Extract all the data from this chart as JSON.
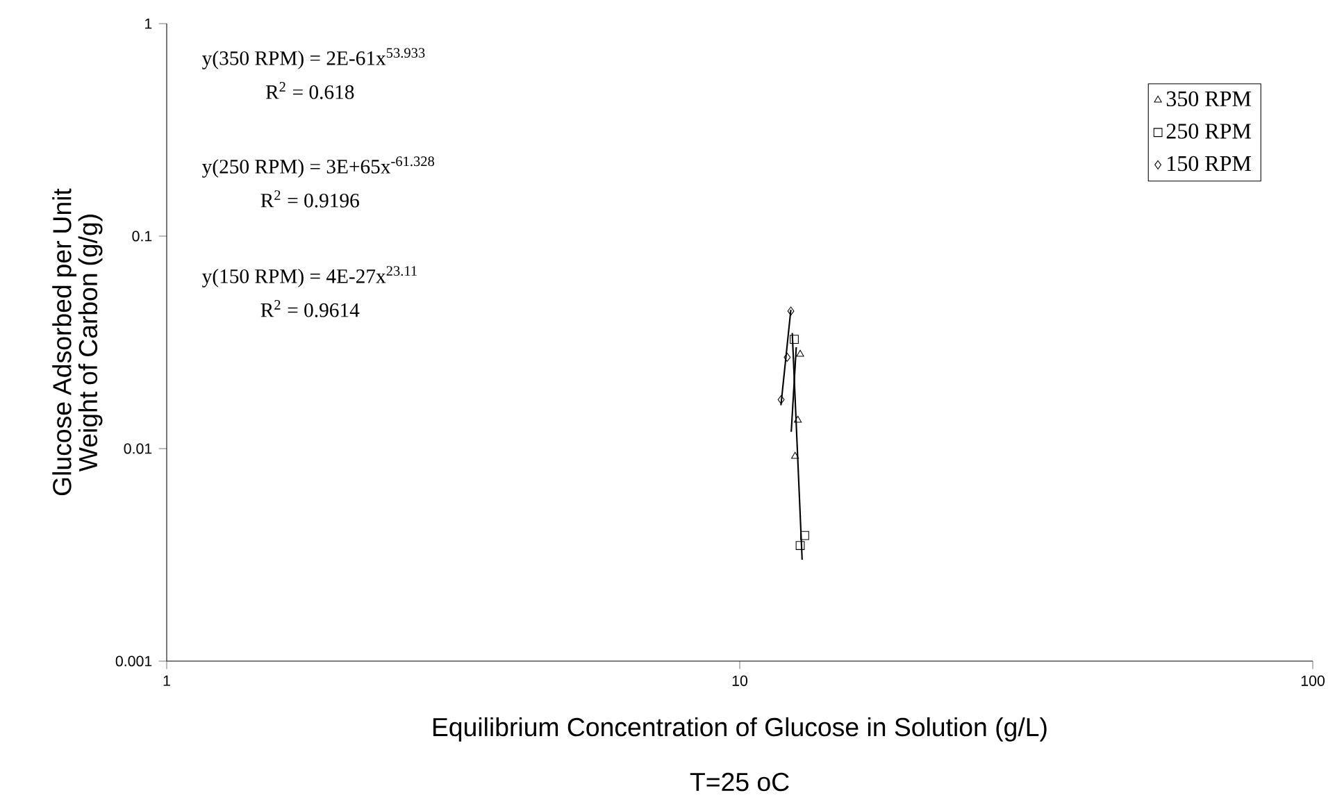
{
  "chart_data": {
    "type": "scatter",
    "xlabel": "Equilibrium Concentration of Glucose in Solution (g/L)",
    "ylabel": "Glucose Adsorbed per Unit Weight of Carbon (g/g)",
    "log": "xy",
    "xlim": [
      1,
      100
    ],
    "ylim": [
      0.001,
      1
    ],
    "xticks": [
      1,
      10,
      100
    ],
    "yticks": [
      0.001,
      0.01,
      0.1,
      1
    ],
    "grid": false,
    "legend": "top right",
    "series": [
      {
        "name": "350 RPM",
        "color": "#000000",
        "marker": "triangle",
        "x": [
          12.75,
          12.63,
          12.49
        ],
        "values": [
          0.0278,
          0.0136,
          0.0092
        ]
      },
      {
        "name": "250 RPM",
        "color": "#000000",
        "marker": "square",
        "x": [
          12.45,
          12.98,
          12.75
        ],
        "values": [
          0.0327,
          0.0039,
          0.0035
        ]
      },
      {
        "name": "150 RPM",
        "color": "#000000",
        "marker": "diamond",
        "x": [
          12.28,
          12.1,
          11.81
        ],
        "values": [
          0.0444,
          0.0269,
          0.017
        ]
      },
      {
        "type": "line",
        "color": "#000000",
        "marker": "none",
        "x": [
          12.3,
          12.55
        ],
        "values": [
          0.012,
          0.03
        ]
      },
      {
        "type": "line",
        "color": "#000000",
        "marker": "none",
        "x": [
          12.35,
          12.85
        ],
        "values": [
          0.035,
          0.003
        ]
      },
      {
        "type": "line",
        "color": "#000000",
        "marker": "none",
        "x": [
          11.8,
          12.28
        ],
        "values": [
          0.016,
          0.045
        ]
      }
    ],
    "annotations": [
      "y(350 RPM) = 2E-61x$^{53.933}$",
      "R$^{2}$ = 0.618",
      "y(250 RPM) = 3E+65x$^{-61.328}$",
      "R$^{2}$ = 0.9196",
      "y(150 RPM) = 4E-27x$^{23.11}$",
      "R$^{2}$ = 0.9614",
      "T=25 oC"
    ]
  }
}
